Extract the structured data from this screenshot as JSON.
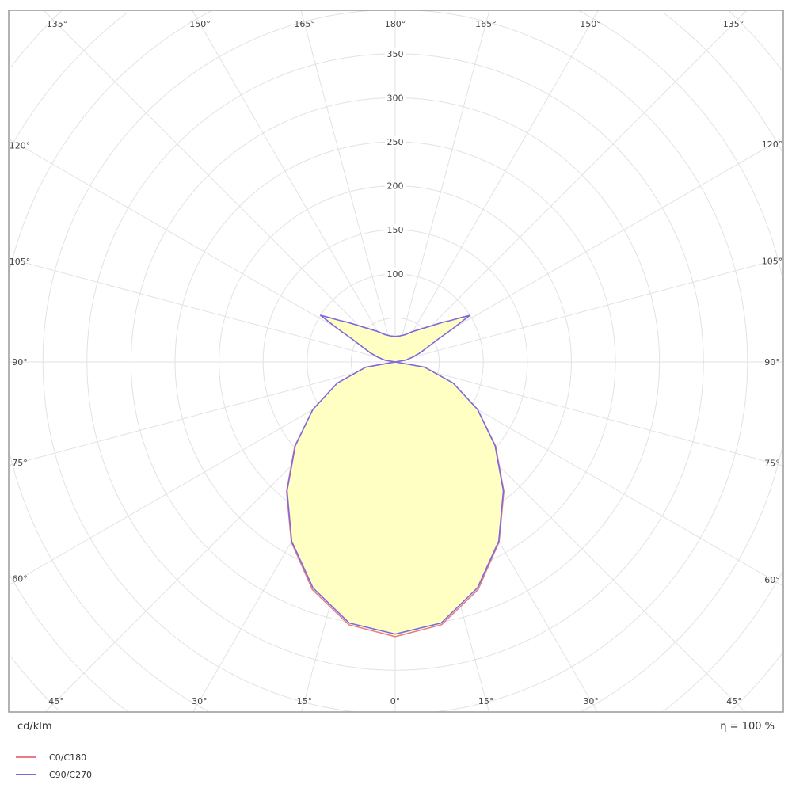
{
  "chart_data": {
    "type": "polar",
    "unit_label": "cd/klm",
    "efficiency_label": "η = 100 %",
    "radial_ticks": [
      100,
      150,
      200,
      250,
      300,
      350
    ],
    "radial_grid_step": 50,
    "angle_ticks": [
      "135°",
      "150°",
      "165°",
      "180°",
      "165°",
      "150°",
      "135°",
      "120°",
      "105°",
      "90°",
      "75°",
      "60°",
      "45°",
      "30°",
      "15°",
      "0°"
    ],
    "angle_grid_step_deg": 15,
    "fill_color": "#ffffc4",
    "series": [
      {
        "name": "C0/C180",
        "color": "#e87a8a",
        "gamma": [
          0,
          10,
          20,
          30,
          40,
          50,
          60,
          70,
          80,
          90,
          100,
          105,
          110,
          115,
          118,
          120,
          122,
          124,
          127,
          130,
          135,
          140,
          150,
          160,
          170,
          180
        ],
        "values": [
          312,
          303,
          275,
          236,
          192,
          149,
          108,
          70,
          34,
          0,
          12,
          20,
          30,
          42,
          55,
          75,
          100,
          90,
          78,
          70,
          58,
          50,
          40,
          33,
          30,
          29
        ]
      },
      {
        "name": "C90/C270",
        "color": "#7a6ae0",
        "gamma": [
          0,
          10,
          20,
          30,
          40,
          50,
          60,
          70,
          80,
          90,
          100,
          105,
          110,
          115,
          118,
          120,
          122,
          124,
          127,
          130,
          135,
          140,
          150,
          160,
          170,
          180
        ],
        "values": [
          309,
          301,
          273,
          235,
          191,
          148,
          108,
          70,
          34,
          0,
          12,
          20,
          30,
          42,
          55,
          75,
          100,
          90,
          78,
          70,
          58,
          50,
          40,
          33,
          30,
          29
        ]
      }
    ]
  }
}
